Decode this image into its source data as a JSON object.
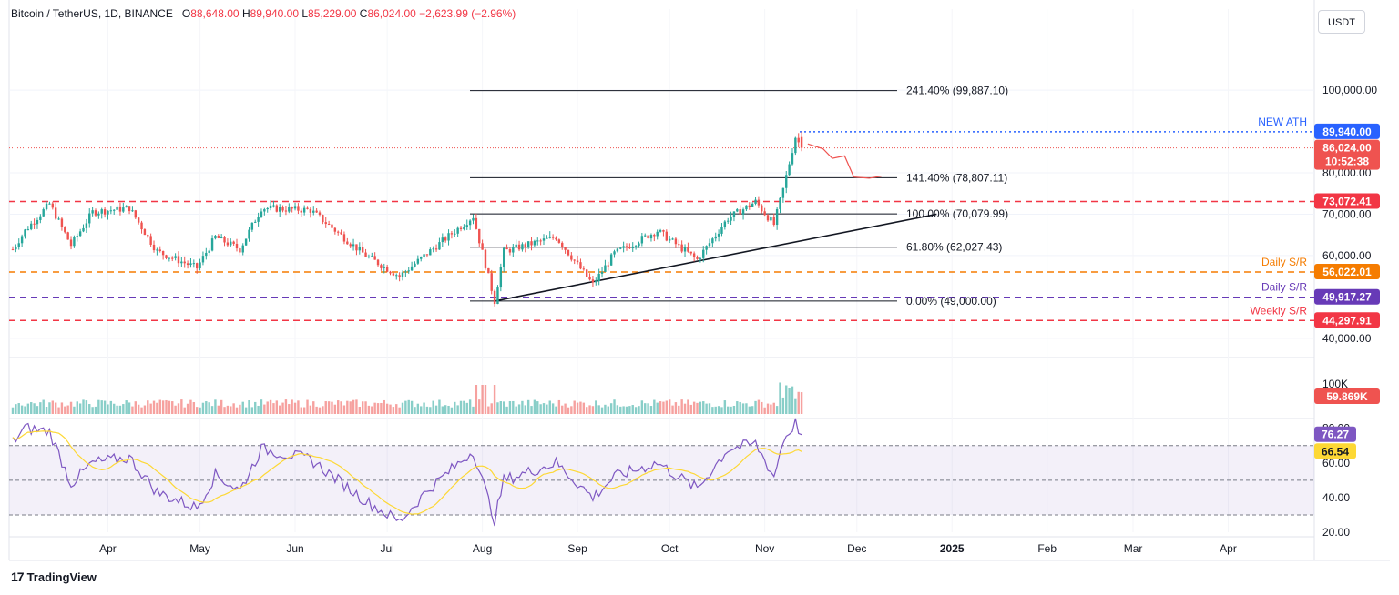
{
  "header": {
    "symbol": "Bitcoin / TetherUS, 1D, BINANCE",
    "open_label": "O",
    "open": "88,648.00",
    "high_label": "H",
    "high": "89,940.00",
    "low_label": "L",
    "low": "85,229.00",
    "close_label": "C",
    "close": "86,024.00",
    "change": "−2,623.99 (−2.96%)"
  },
  "currency": "USDT",
  "brand": "TradingView",
  "colors": {
    "up": "#26a69a",
    "down": "#ef5350",
    "ath": "#2962ff",
    "weekly": "#f23645",
    "orange": "#f57c00",
    "purple": "#673ab7",
    "rsi": "#7e57c2",
    "rsi_ma": "#fdd835"
  },
  "chart_data": {
    "type": "candlestick",
    "title": "Bitcoin / TetherUS, 1D, BINANCE",
    "x_ticks": [
      "Apr",
      "May",
      "Jun",
      "Jul",
      "Aug",
      "Sep",
      "Oct",
      "Nov",
      "Dec",
      "2025",
      "Feb",
      "Mar",
      "Apr"
    ],
    "y_ticks": [
      "100,000.00",
      "80,000.00",
      "70,000.00",
      "60,000.00",
      "40,000.00"
    ],
    "y_tick_values": [
      100000,
      80000,
      70000,
      60000,
      40000
    ],
    "y_range": [
      36000,
      113000
    ],
    "ohlc": {
      "open": 88648.0,
      "high": 89940.0,
      "low": 85229.0,
      "close": 86024.0,
      "change": -2623.99,
      "change_pct": -2.96
    },
    "anchor_points": [
      [
        "2024-03-01",
        61500
      ],
      [
        "2024-03-05",
        66000
      ],
      [
        "2024-03-13",
        72500
      ],
      [
        "2024-03-20",
        62500
      ],
      [
        "2024-03-27",
        70500
      ],
      [
        "2024-04-08",
        71500
      ],
      [
        "2024-04-17",
        61000
      ],
      [
        "2024-04-30",
        57000
      ],
      [
        "2024-05-06",
        64500
      ],
      [
        "2024-05-14",
        61500
      ],
      [
        "2024-05-21",
        71500
      ],
      [
        "2024-06-06",
        71000
      ],
      [
        "2024-06-24",
        60000
      ],
      [
        "2024-07-05",
        55000
      ],
      [
        "2024-07-14",
        60500
      ],
      [
        "2024-07-29",
        69500
      ],
      [
        "2024-08-05",
        49000
      ],
      [
        "2024-08-08",
        61000
      ],
      [
        "2024-08-25",
        64500
      ],
      [
        "2024-09-06",
        53000
      ],
      [
        "2024-09-13",
        60500
      ],
      [
        "2024-09-27",
        66000
      ],
      [
        "2024-10-10",
        59000
      ],
      [
        "2024-10-20",
        69000
      ],
      [
        "2024-10-29",
        73000
      ],
      [
        "2024-11-04",
        67500
      ],
      [
        "2024-11-07",
        76000
      ],
      [
        "2024-11-11",
        88700
      ],
      [
        "2024-11-13",
        86024
      ]
    ],
    "fibonacci": [
      {
        "label": "241.40% (99,887.10)",
        "value": 99887.1
      },
      {
        "label": "141.40% (78,807.11)",
        "value": 78807.11
      },
      {
        "label": "100.00% (70,079.99)",
        "value": 70079.99
      },
      {
        "label": "61.80% (62,027.43)",
        "value": 62027.43
      },
      {
        "label": "0.00% (49,000.00)",
        "value": 49000.0
      }
    ],
    "levels": [
      {
        "label": "NEW ATH",
        "value": 89940.0,
        "price": "89,940.00",
        "color": "#2962ff"
      },
      {
        "label": "",
        "value": 73072.41,
        "price": "73,072.41",
        "color": "#f23645"
      },
      {
        "label": "Daily S/R",
        "value": 56022.01,
        "price": "56,022.01",
        "color": "#f57c00"
      },
      {
        "label": "Daily S/R",
        "value": 49917.27,
        "price": "49,917.27",
        "color": "#673ab7"
      },
      {
        "label": "Weekly S/R",
        "value": 44297.91,
        "price": "44,297.91",
        "color": "#f23645"
      }
    ],
    "current_price": {
      "price": "86,024.00",
      "countdown": "10:52:38",
      "value": 86024.0
    },
    "trendline": {
      "start": [
        "2024-08-05",
        49000
      ],
      "end": [
        "2024-12-27",
        70000
      ]
    },
    "projection": [
      [
        "2024-11-15",
        87000
      ],
      [
        "2024-11-20",
        85800
      ],
      [
        "2024-11-23",
        83500
      ],
      [
        "2024-11-27",
        84100
      ],
      [
        "2024-11-30",
        79000
      ],
      [
        "2024-12-05",
        78700
      ],
      [
        "2024-12-09",
        79200
      ]
    ],
    "volume": {
      "axis_label": "100K",
      "last_label": "59.869K",
      "last_value": 59869
    },
    "rsi": {
      "value_label": "76.27",
      "ma_label": "66.54",
      "value": 76.27,
      "ma": 66.54,
      "ticks": [
        "80.00",
        "60.00",
        "40.00",
        "20.00"
      ],
      "anchor_points": [
        [
          "2024-03-01",
          72
        ],
        [
          "2024-03-05",
          80
        ],
        [
          "2024-03-13",
          78
        ],
        [
          "2024-03-20",
          48
        ],
        [
          "2024-03-27",
          60
        ],
        [
          "2024-04-08",
          63
        ],
        [
          "2024-04-17",
          43
        ],
        [
          "2024-04-30",
          34
        ],
        [
          "2024-05-06",
          53
        ],
        [
          "2024-05-14",
          44
        ],
        [
          "2024-05-21",
          68
        ],
        [
          "2024-06-06",
          62
        ],
        [
          "2024-06-24",
          38
        ],
        [
          "2024-07-05",
          26
        ],
        [
          "2024-07-14",
          44
        ],
        [
          "2024-07-29",
          67
        ],
        [
          "2024-08-05",
          27
        ],
        [
          "2024-08-08",
          50
        ],
        [
          "2024-08-25",
          60
        ],
        [
          "2024-09-06",
          40
        ],
        [
          "2024-09-13",
          52
        ],
        [
          "2024-09-27",
          60
        ],
        [
          "2024-10-10",
          45
        ],
        [
          "2024-10-20",
          68
        ],
        [
          "2024-10-29",
          71
        ],
        [
          "2024-11-04",
          52
        ],
        [
          "2024-11-07",
          73
        ],
        [
          "2024-11-11",
          83
        ],
        [
          "2024-11-13",
          76.27
        ]
      ]
    }
  }
}
